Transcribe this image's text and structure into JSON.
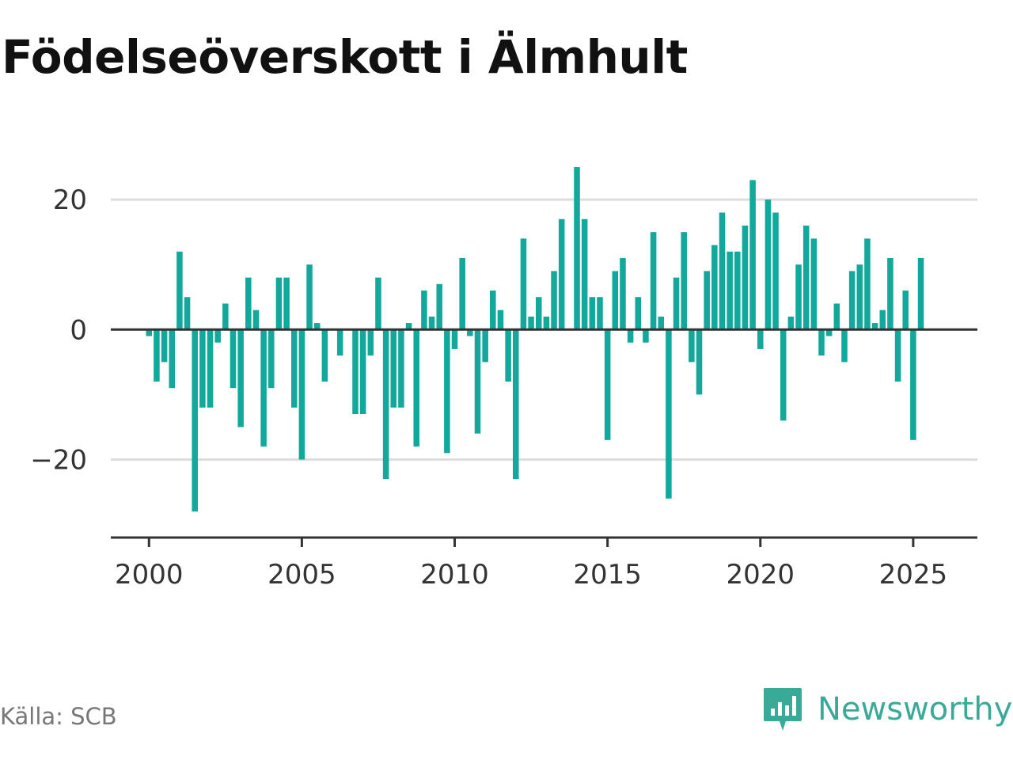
{
  "title": "Födelseöverskott i Älmhult",
  "source": "Källa: SCB",
  "brand": {
    "name": "Newsworthy",
    "icon": "newsworthy-logo-icon",
    "color": "#3aaa98"
  },
  "chart_data": {
    "type": "bar",
    "title": "Födelseöverskott i Älmhult",
    "xlabel": "",
    "ylabel": "",
    "bar_color": "#12a89c",
    "xlim": [
      1998.75,
      2027.1
    ],
    "ylim": [
      -32,
      30
    ],
    "x_ticks": [
      2000,
      2005,
      2010,
      2015,
      2020,
      2025
    ],
    "x_tick_labels": [
      "2000",
      "2005",
      "2010",
      "2015",
      "2020",
      "2025"
    ],
    "y_ticks": [
      -20,
      0,
      20
    ],
    "y_tick_labels": [
      "−20",
      "0",
      "20"
    ],
    "grid": true,
    "legend": false,
    "bar_interval": "quarter",
    "start_period": "2000 Q1",
    "values": [
      -1,
      -8,
      -5,
      -9,
      12,
      5,
      -28,
      -12,
      -12,
      -2,
      4,
      -9,
      -15,
      8,
      3,
      -18,
      -9,
      8,
      8,
      -12,
      -20,
      10,
      1,
      -8,
      0,
      -4,
      0,
      -13,
      -13,
      -4,
      8,
      -23,
      -12,
      -12,
      1,
      -18,
      6,
      2,
      7,
      -19,
      -3,
      11,
      -1,
      -16,
      -5,
      6,
      3,
      -8,
      -23,
      14,
      2,
      5,
      2,
      9,
      17,
      0,
      25,
      17,
      5,
      5,
      -17,
      9,
      11,
      -2,
      5,
      -2,
      15,
      2,
      -26,
      8,
      15,
      -5,
      -10,
      9,
      13,
      18,
      12,
      12,
      16,
      23,
      -3,
      20,
      18,
      -14,
      2,
      10,
      16,
      14,
      -4,
      -1,
      4,
      -5,
      9,
      10,
      14,
      1,
      3,
      11,
      -8,
      6,
      -17,
      11
    ]
  }
}
